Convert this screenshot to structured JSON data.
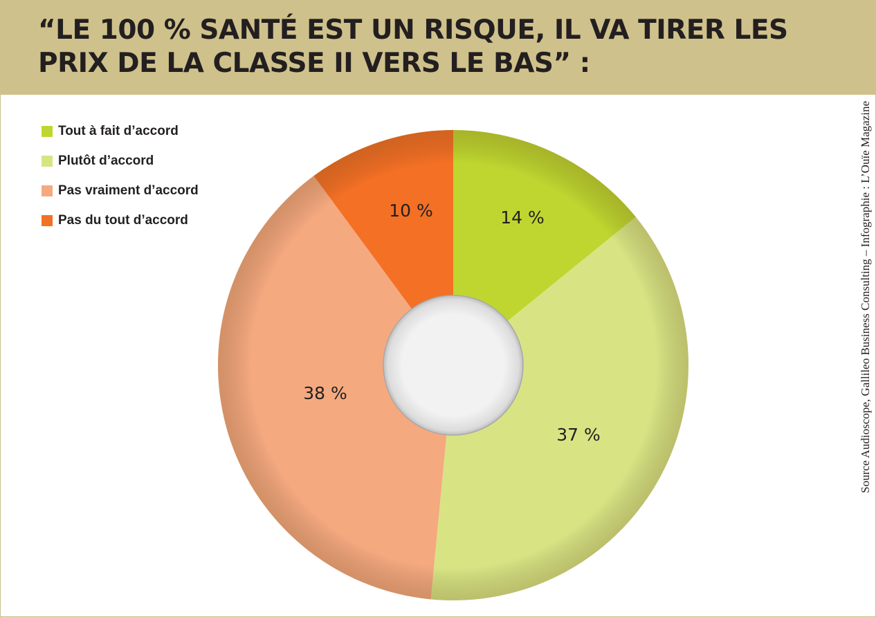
{
  "title": "“LE 100 % SANTÉ EST UN RISQUE, IL VA TIRER LES PRIX DE LA CLASSE II VERS LE BAS” :",
  "source": "Source Audioscope, Gallileo Business Consulting – Infographie : L’Ouïe Magazine",
  "colors": {
    "header_band": "#cfc18b",
    "tout_a_fait": "#bfd630",
    "plutot": "#d8e484",
    "pas_vraiment": "#f5a97f",
    "pas_du_tout": "#f37025"
  },
  "chart_data": {
    "type": "pie",
    "variant": "donut",
    "title": "“LE 100 % SANTÉ EST UN RISQUE, IL VA TIRER LES PRIX DE LA CLASSE II VERS LE BAS” :",
    "legend_position": "top-left",
    "categories": [
      "Tout à fait d’accord",
      "Plutôt d’accord",
      "Pas vraiment d’accord",
      "Pas du tout d’accord"
    ],
    "values": [
      14,
      37,
      38,
      10
    ],
    "labels": [
      "14 %",
      "37 %",
      "38 %",
      "10 %"
    ],
    "colors": [
      "#bfd630",
      "#d8e484",
      "#f5a97f",
      "#f37025"
    ]
  }
}
